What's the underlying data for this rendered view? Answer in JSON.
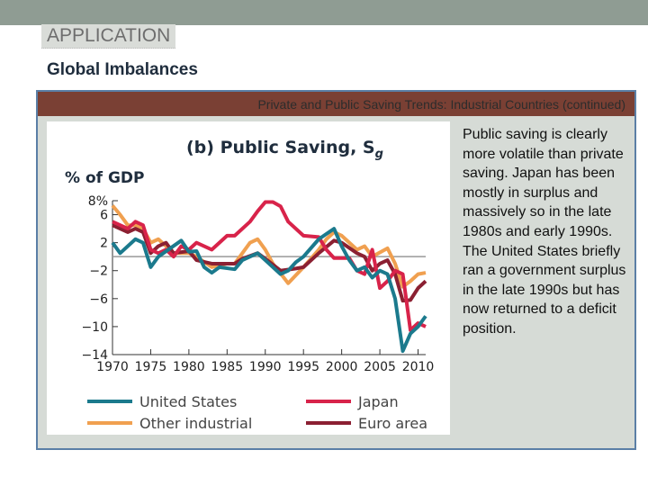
{
  "slide": {
    "section_label": "APPLICATION",
    "title": "Global Imbalances",
    "figure_header": "Private and Public Saving Trends: Industrial Countries (continued)",
    "description": "Public saving is clearly more volatile than private saving. Japan has been mostly in surplus and massively so in the late 1980s and early 1990s. The United States briefly ran a government surplus in the late 1990s but has now returned to a deficit position."
  },
  "chart_data": {
    "type": "line",
    "title": "(b) Public Saving, S",
    "title_subscript": "g",
    "ylabel": "% of GDP",
    "xlabel": "",
    "xlim": [
      1970,
      2011
    ],
    "ylim": [
      -14,
      8
    ],
    "x_ticks": [
      "1970",
      "1975",
      "1980",
      "1985",
      "1990",
      "1995",
      "2000",
      "2005",
      "2010"
    ],
    "y_ticks": [
      "8%",
      "6",
      "2",
      "−2",
      "−6",
      "−10",
      "−14"
    ],
    "y_tick_values": [
      8,
      6,
      2,
      -2,
      -6,
      -10,
      -14
    ],
    "reference_line": 0,
    "grid": false,
    "legend_placement": "bottom",
    "series": [
      {
        "name": "United States",
        "color": "#1b7a8d",
        "points": [
          [
            1970,
            2
          ],
          [
            1971,
            0.5
          ],
          [
            1973,
            2.5
          ],
          [
            1974,
            2
          ],
          [
            1975,
            -1.5
          ],
          [
            1976,
            0
          ],
          [
            1979,
            2.3
          ],
          [
            1980,
            0.7
          ],
          [
            1981,
            0.8
          ],
          [
            1982,
            -1.5
          ],
          [
            1983,
            -2.3
          ],
          [
            1984,
            -1.5
          ],
          [
            1986,
            -1.8
          ],
          [
            1987,
            -0.5
          ],
          [
            1989,
            0.5
          ],
          [
            1990,
            -0.5
          ],
          [
            1992,
            -2.5
          ],
          [
            1993,
            -2
          ],
          [
            1994,
            -0.8
          ],
          [
            1995,
            0
          ],
          [
            1997,
            2.5
          ],
          [
            1999,
            4
          ],
          [
            2000,
            1.5
          ],
          [
            2001,
            -0.5
          ],
          [
            2002,
            -2
          ],
          [
            2003,
            -1.5
          ],
          [
            2004,
            -3
          ],
          [
            2005,
            -2
          ],
          [
            2006,
            -2.5
          ],
          [
            2007,
            -6
          ],
          [
            2008,
            -13.5
          ],
          [
            2009,
            -11
          ],
          [
            2010,
            -10
          ],
          [
            2011,
            -8.5
          ]
        ]
      },
      {
        "name": "Japan",
        "color": "#d8234a",
        "points": [
          [
            1970,
            5
          ],
          [
            1972,
            4
          ],
          [
            1973,
            5
          ],
          [
            1974,
            4.5
          ],
          [
            1975,
            1
          ],
          [
            1976,
            0.5
          ],
          [
            1977,
            1
          ],
          [
            1978,
            0
          ],
          [
            1979,
            1.5
          ],
          [
            1980,
            1
          ],
          [
            1981,
            2
          ],
          [
            1982,
            1.5
          ],
          [
            1983,
            1
          ],
          [
            1985,
            3
          ],
          [
            1986,
            3
          ],
          [
            1988,
            5
          ],
          [
            1989,
            6.5
          ],
          [
            1990,
            7.8
          ],
          [
            1991,
            7.8
          ],
          [
            1992,
            7.2
          ],
          [
            1993,
            5
          ],
          [
            1995,
            3
          ],
          [
            1997,
            2.8
          ],
          [
            1998,
            1
          ],
          [
            1999,
            -0.2
          ],
          [
            2001,
            -0.2
          ],
          [
            2002,
            -2
          ],
          [
            2003,
            -2.5
          ],
          [
            2004,
            1
          ],
          [
            2005,
            -4.5
          ],
          [
            2006,
            -3.5
          ],
          [
            2007,
            -2
          ],
          [
            2008,
            -2.5
          ],
          [
            2009,
            -10.5
          ],
          [
            2010,
            -9.5
          ],
          [
            2011,
            -10
          ]
        ]
      },
      {
        "name": "Other industrial",
        "color": "#f0a050",
        "points": [
          [
            1970,
            7.3
          ],
          [
            1971,
            6
          ],
          [
            1972,
            4.5
          ],
          [
            1973,
            4.5
          ],
          [
            1974,
            4
          ],
          [
            1975,
            2
          ],
          [
            1976,
            2.5
          ],
          [
            1977,
            1.5
          ],
          [
            1978,
            0.5
          ],
          [
            1980,
            0.5
          ],
          [
            1981,
            0
          ],
          [
            1983,
            -1.5
          ],
          [
            1985,
            -1
          ],
          [
            1986,
            -1
          ],
          [
            1987,
            0.5
          ],
          [
            1988,
            2
          ],
          [
            1989,
            2.5
          ],
          [
            1990,
            1
          ],
          [
            1991,
            -1
          ],
          [
            1993,
            -3.8
          ],
          [
            1995,
            -1.5
          ],
          [
            1997,
            1
          ],
          [
            1998,
            2.5
          ],
          [
            1999,
            3.5
          ],
          [
            2000,
            3
          ],
          [
            2001,
            2
          ],
          [
            2002,
            1
          ],
          [
            2003,
            1.5
          ],
          [
            2004,
            0
          ],
          [
            2006,
            1.2
          ],
          [
            2007,
            -1
          ],
          [
            2008,
            -4.3
          ],
          [
            2009,
            -3.5
          ],
          [
            2010,
            -2.5
          ],
          [
            2011,
            -2.3
          ]
        ]
      },
      {
        "name": "Euro area",
        "color": "#8b2032",
        "points": [
          [
            1970,
            4.5
          ],
          [
            1972,
            3.5
          ],
          [
            1973,
            4
          ],
          [
            1974,
            3.5
          ],
          [
            1975,
            0.5
          ],
          [
            1976,
            1.5
          ],
          [
            1977,
            2
          ],
          [
            1978,
            0.5
          ],
          [
            1980,
            0.8
          ],
          [
            1981,
            -0.5
          ],
          [
            1983,
            -1
          ],
          [
            1986,
            -1
          ],
          [
            1987,
            -0.3
          ],
          [
            1989,
            0.5
          ],
          [
            1990,
            -0.3
          ],
          [
            1992,
            -2
          ],
          [
            1994,
            -1.7
          ],
          [
            1995,
            -1.5
          ],
          [
            1997,
            0.5
          ],
          [
            1999,
            2.3
          ],
          [
            2000,
            2
          ],
          [
            2002,
            0.5
          ],
          [
            2003,
            0
          ],
          [
            2004,
            -2
          ],
          [
            2005,
            -1
          ],
          [
            2006,
            -0.5
          ],
          [
            2007,
            -2.5
          ],
          [
            2008,
            -6.3
          ],
          [
            2009,
            -6.2
          ],
          [
            2010,
            -4.5
          ],
          [
            2011,
            -3.5
          ]
        ]
      }
    ]
  }
}
